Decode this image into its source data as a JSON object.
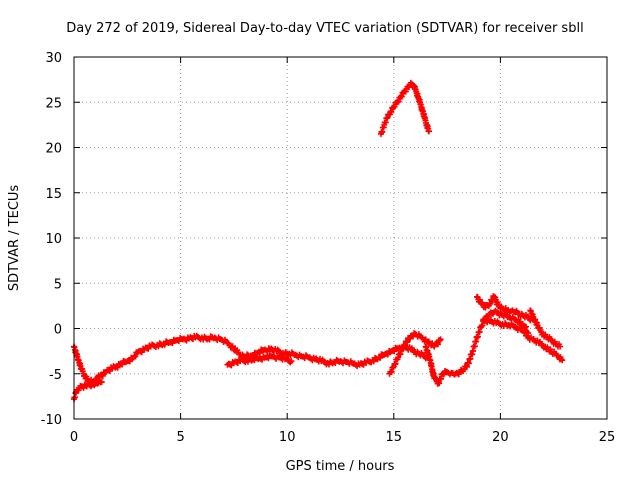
{
  "chart_data": {
    "type": "scatter",
    "title": "Day 272 of 2019, Sidereal Day-to-day VTEC variation (SDTVAR) for receiver sbll",
    "xlabel": "GPS time / hours",
    "ylabel": "SDTVAR / TECUs",
    "xlim": [
      0,
      25
    ],
    "ylim": [
      -10,
      30
    ],
    "xticks": [
      0,
      5,
      10,
      15,
      20,
      25
    ],
    "yticks": [
      -10,
      -5,
      0,
      5,
      10,
      15,
      20,
      25,
      30
    ],
    "xtick_labels": [
      "0",
      "5",
      "10",
      "15",
      "20",
      "25"
    ],
    "ytick_labels": [
      "-10",
      "-5",
      "0",
      "5",
      "10",
      "15",
      "20",
      "25",
      "30"
    ],
    "grid": true,
    "legend": "none",
    "series": [
      {
        "name": "main",
        "x": [
          0,
          0.2,
          0.35,
          0.5,
          0.7,
          0.85,
          1.0,
          1.2,
          1.5,
          1.8,
          2.0,
          2.2,
          2.5,
          2.8,
          3.0,
          3.3,
          3.6,
          3.9,
          4.2,
          4.5,
          4.8,
          5.1,
          5.4,
          5.7,
          6.0,
          6.3,
          6.6,
          6.9,
          7.2,
          7.4,
          7.6,
          7.8,
          8.0,
          8.3,
          8.6,
          8.9,
          9.2,
          9.5,
          9.8,
          10.1,
          10.4,
          10.7,
          11.0,
          11.3,
          11.6,
          11.9,
          12.2,
          12.5,
          12.8,
          13.1,
          13.4,
          13.7,
          14.0,
          14.3,
          14.6,
          14.9,
          15.2,
          15.5,
          15.8,
          16.0,
          16.2,
          16.4,
          16.6
        ],
        "y": [
          -2.0,
          -3.5,
          -4.5,
          -5.2,
          -5.8,
          -5.9,
          -5.6,
          -5.3,
          -4.8,
          -4.4,
          -4.2,
          -3.9,
          -3.6,
          -3.2,
          -2.6,
          -2.3,
          -2.0,
          -1.8,
          -1.7,
          -1.5,
          -1.3,
          -1.2,
          -1.1,
          -1.0,
          -1.0,
          -1.1,
          -1.0,
          -1.2,
          -1.6,
          -2.0,
          -2.5,
          -2.9,
          -3.1,
          -3.0,
          -2.7,
          -2.4,
          -2.3,
          -2.5,
          -2.7,
          -2.8,
          -2.9,
          -3.1,
          -3.2,
          -3.4,
          -3.6,
          -3.8,
          -3.7,
          -3.6,
          -3.7,
          -3.9,
          -4.0,
          -3.8,
          -3.5,
          -3.2,
          -2.8,
          -2.5,
          -2.2,
          -2.1,
          -2.3,
          -2.6,
          -2.8,
          -3.0,
          -3.2
        ]
      },
      {
        "name": "initial-dip",
        "x": [
          0.0,
          0.1,
          0.25,
          0.4,
          0.55,
          0.7,
          0.85,
          1.0,
          1.15,
          1.3
        ],
        "y": [
          -7.8,
          -7.0,
          -6.6,
          -6.4,
          -6.3,
          -6.2,
          -6.2,
          -6.1,
          -6.0,
          -5.9
        ]
      },
      {
        "name": "segment-7-10",
        "x": [
          7.2,
          7.5,
          7.8,
          8.1,
          8.4,
          8.7,
          9.0,
          9.3,
          9.6,
          9.9,
          10.2
        ],
        "y": [
          -4.0,
          -3.8,
          -3.6,
          -3.5,
          -3.4,
          -3.3,
          -3.2,
          -3.1,
          -3.2,
          -3.4,
          -3.6
        ]
      },
      {
        "name": "segment-15-16",
        "x": [
          14.8,
          15.0,
          15.2,
          15.4,
          15.6,
          15.8,
          16.0,
          16.3,
          16.6,
          16.9,
          17.2
        ],
        "y": [
          -5.0,
          -4.2,
          -3.2,
          -2.2,
          -1.5,
          -0.8,
          -0.6,
          -1.0,
          -1.5,
          -2.0,
          -1.2
        ]
      },
      {
        "name": "segment-16-19",
        "x": [
          16.5,
          16.7,
          16.9,
          17.1,
          17.3,
          17.5,
          17.7,
          17.9,
          18.1,
          18.3,
          18.5,
          18.7,
          18.9,
          19.1,
          19.3,
          19.5,
          19.7,
          19.9,
          20.1,
          20.4,
          20.7,
          21.0,
          21.2
        ],
        "y": [
          -2.0,
          -3.5,
          -5.5,
          -6.0,
          -5.0,
          -4.8,
          -4.9,
          -5.0,
          -4.8,
          -4.5,
          -3.8,
          -2.5,
          -1.0,
          0.2,
          1.2,
          1.6,
          1.8,
          1.7,
          1.5,
          1.3,
          1.0,
          0.5,
          0.2
        ]
      },
      {
        "name": "segment-19-21-upper",
        "x": [
          18.9,
          19.1,
          19.3,
          19.5,
          19.7,
          19.9,
          20.1,
          20.3,
          20.5,
          20.7,
          20.9,
          21.1,
          21.3,
          21.5
        ],
        "y": [
          3.5,
          2.8,
          2.3,
          2.8,
          3.5,
          2.6,
          2.2,
          2.0,
          1.9,
          1.8,
          1.6,
          1.4,
          1.2,
          1.0
        ]
      },
      {
        "name": "segment-19-21-lower",
        "x": [
          19.2,
          19.5,
          19.8,
          20.1,
          20.4,
          20.7,
          21.0,
          21.3
        ],
        "y": [
          1.0,
          0.8,
          0.6,
          0.5,
          0.4,
          0.2,
          -0.2,
          -0.5
        ]
      },
      {
        "name": "segment-21-23",
        "x": [
          21.4,
          21.6,
          21.8,
          22.0,
          22.2,
          22.4,
          22.6,
          22.8
        ],
        "y": [
          2.0,
          1.0,
          0.0,
          -0.6,
          -1.0,
          -1.3,
          -1.7,
          -2.0
        ]
      },
      {
        "name": "segment-21-23-lower",
        "x": [
          21.2,
          21.5,
          21.8,
          22.1,
          22.4,
          22.7,
          22.9
        ],
        "y": [
          -0.8,
          -1.2,
          -1.6,
          -2.0,
          -2.6,
          -3.0,
          -3.5
        ]
      },
      {
        "name": "arc-14-17",
        "x": [
          14.4,
          14.55,
          14.7,
          14.85,
          15.0,
          15.15,
          15.3,
          15.45,
          15.6,
          15.75,
          15.85,
          15.95,
          16.05,
          16.15,
          16.25,
          16.35,
          16.45,
          16.55,
          16.65
        ],
        "y": [
          21.5,
          22.5,
          23.3,
          24.0,
          24.5,
          25.0,
          25.5,
          26.0,
          26.5,
          26.9,
          27.0,
          26.8,
          26.2,
          25.5,
          24.8,
          24.0,
          23.2,
          22.5,
          21.8
        ]
      }
    ]
  }
}
